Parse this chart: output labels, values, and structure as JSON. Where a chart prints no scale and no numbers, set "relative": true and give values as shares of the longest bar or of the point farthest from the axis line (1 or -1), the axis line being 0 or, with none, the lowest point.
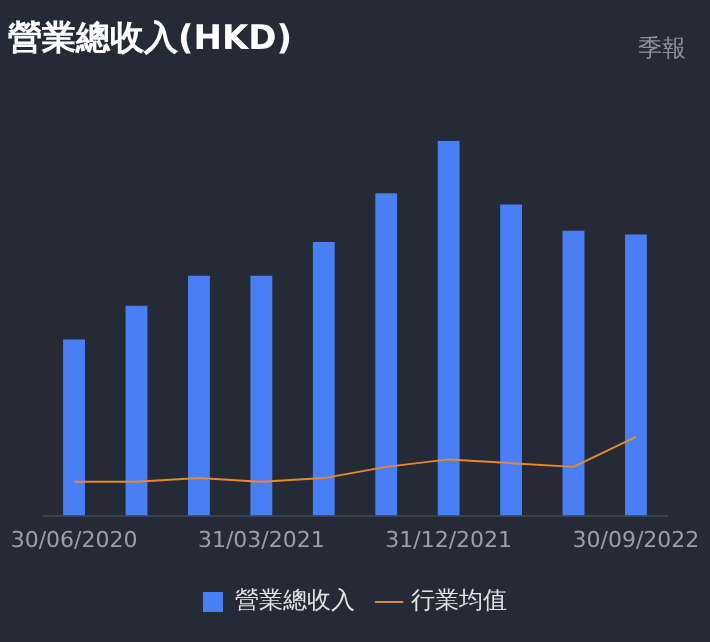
{
  "chart_data": {
    "type": "bar",
    "title": "營業總收入(HKD)",
    "annotations": [
      "季報"
    ],
    "relative": true,
    "categories": [
      "30/06/2020",
      null,
      null,
      "31/03/2021",
      null,
      null,
      "31/12/2021",
      null,
      null,
      "30/09/2022"
    ],
    "series": [
      {
        "name": "營業總收入",
        "color": "#4a7ef7",
        "values": [
          0.47,
          0.56,
          0.64,
          0.64,
          0.73,
          0.86,
          1,
          0.83,
          0.76,
          0.75
        ]
      },
      {
        "name": "行業均值",
        "type": "line",
        "color": "#e8892a",
        "values": [
          0.09,
          0.09,
          0.1,
          0.09,
          0.1,
          0.13,
          0.15,
          0.14,
          0.13,
          0.21
        ]
      }
    ],
    "legend": "bottom",
    "grid": false
  }
}
